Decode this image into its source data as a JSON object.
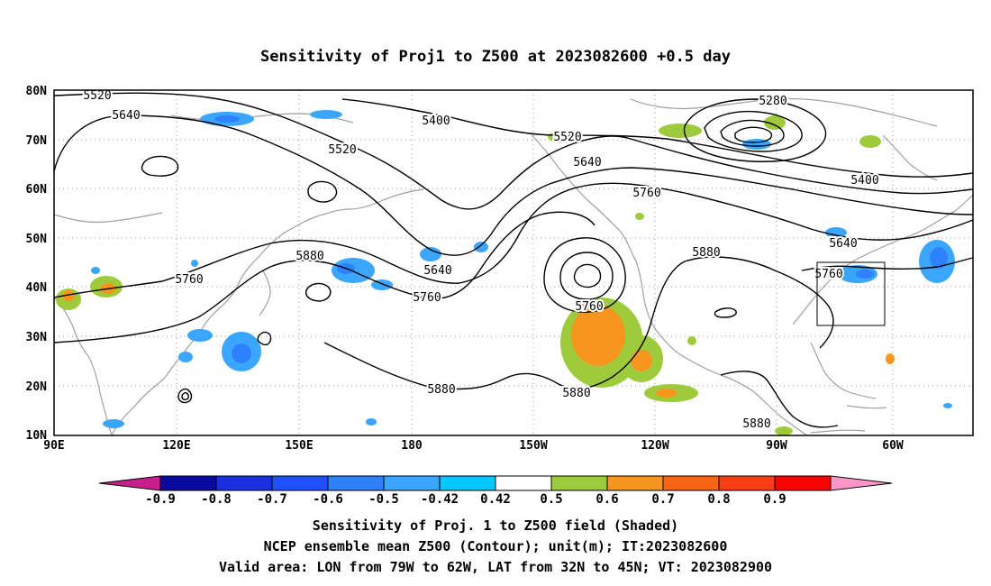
{
  "title": "Sensitivity of Proj1 to Z500 at 2023082600 +0.5 day",
  "map": {
    "lat_ticks": [
      "80N",
      "70N",
      "60N",
      "50N",
      "40N",
      "30N",
      "20N",
      "10N"
    ],
    "lon_ticks": [
      "90E",
      "120E",
      "150E",
      "180",
      "150W",
      "120W",
      "90W",
      "60W"
    ],
    "contour_labels": [
      "5520",
      "5640",
      "5400",
      "5520",
      "5280",
      "5520",
      "5640",
      "5760",
      "5400",
      "5640",
      "5760",
      "5880",
      "5760",
      "5640",
      "5760",
      "5880",
      "5880",
      "5880",
      "5880"
    ],
    "valid_area": {
      "lon_from": "79W",
      "lon_to": "62W",
      "lat_from": "32N",
      "lat_to": "45N"
    }
  },
  "colorbar": {
    "labels": [
      "-0.9",
      "-0.8",
      "-0.7",
      "-0.6",
      "-0.5",
      "-0.42",
      "0.42",
      "0.5",
      "0.6",
      "0.7",
      "0.8",
      "0.9"
    ],
    "colors": [
      "#c81e8c",
      "#0a0aa0",
      "#1a2fe0",
      "#1e50ff",
      "#2f82ff",
      "#3aa6ff",
      "#00c8ff",
      "#ffffff",
      "#9ecb3c",
      "#f6961e",
      "#ff6414",
      "#ff3c14",
      "#ff0000",
      "#ff96c8"
    ]
  },
  "footer": {
    "line1": "Sensitivity of Proj. 1 to Z500 field (Shaded)",
    "line2": "NCEP ensemble mean Z500 (Contour); unit(m); IT:2023082600",
    "line3": "Valid area: LON from 79W to 62W, LAT from 32N to 45N; VT: 2023082900"
  }
}
